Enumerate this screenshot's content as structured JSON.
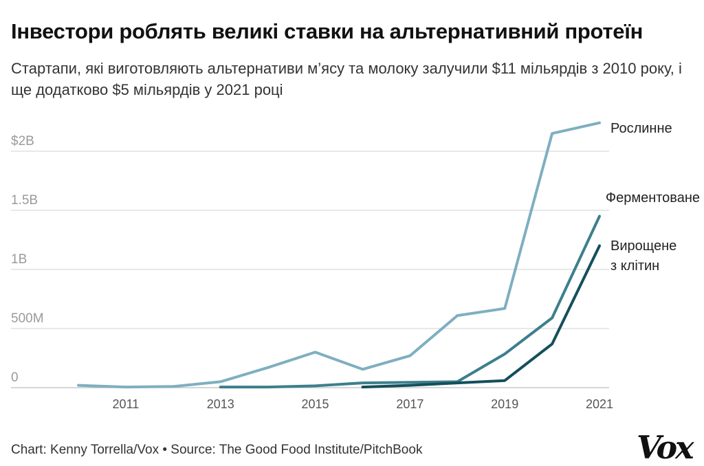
{
  "title": "Інвестори роблять великі ставки на альтернативний протеїн",
  "subtitle": "Стартапи, які виготовляють альтернативи м’ясу та молоку залучили $11 мільярдів з 2010 року, і ще додатково $5 мільярдів у 2021 році",
  "footer": "Chart: Kenny Torrella/Vox • Source: The Good Food Institute/PitchBook",
  "logo_text": "Vox",
  "chart_data": {
    "type": "line",
    "x_range": [
      2010,
      2021
    ],
    "ylim": [
      0,
      2000
    ],
    "grid": true,
    "legend": "inline-right",
    "y_ticks": [
      {
        "value": 0,
        "label": "0"
      },
      {
        "value": 500,
        "label": "500M"
      },
      {
        "value": 1000,
        "label": "1B"
      },
      {
        "value": 1500,
        "label": "1.5B"
      },
      {
        "value": 2000,
        "label": "$2B"
      }
    ],
    "x_ticks": [
      {
        "value": 2011,
        "label": "2011"
      },
      {
        "value": 2013,
        "label": "2013"
      },
      {
        "value": 2015,
        "label": "2015"
      },
      {
        "value": 2017,
        "label": "2017"
      },
      {
        "value": 2019,
        "label": "2019"
      },
      {
        "value": 2021,
        "label": "2021"
      }
    ],
    "series": [
      {
        "name": "Рослинне",
        "name_lines": [
          "Рослинне"
        ],
        "color": "#7eafc0",
        "x": [
          2010,
          2011,
          2012,
          2013,
          2014,
          2015,
          2016,
          2017,
          2018,
          2019,
          2020,
          2021
        ],
        "values": [
          20,
          5,
          10,
          50,
          170,
          300,
          155,
          270,
          610,
          670,
          2150,
          2240
        ]
      },
      {
        "name": "Ферментоване",
        "name_lines": [
          "Ферментоване"
        ],
        "color": "#3d7f8d",
        "x": [
          2013,
          2014,
          2015,
          2016,
          2017,
          2018,
          2019,
          2020,
          2021
        ],
        "values": [
          5,
          5,
          15,
          40,
          45,
          50,
          285,
          590,
          1450
        ]
      },
      {
        "name": "Вирощене з клітин",
        "name_lines": [
          "Вирощене",
          "з клітин"
        ],
        "color": "#134f5c",
        "x": [
          2016,
          2017,
          2018,
          2019,
          2020,
          2021
        ],
        "values": [
          5,
          20,
          40,
          60,
          370,
          1200
        ]
      }
    ]
  }
}
